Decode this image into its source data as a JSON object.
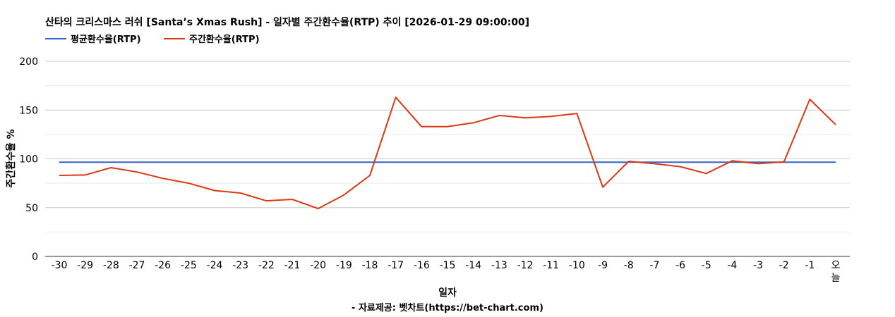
{
  "chart_data": {
    "type": "line",
    "title": "산타의 크리스마스 러쉬 [Santa’s Xmas Rush] - 일자별 주간환수율(RTP) 추이 [2026-01-29 09:00:00]",
    "xlabel": "일자",
    "ylabel": "주간환수율 %",
    "source": "- 자료제공: 벳차트(https://bet-chart.com)",
    "legend_position": "top-left",
    "grid": true,
    "ylim": [
      0,
      200
    ],
    "yticks": [
      "0",
      "50",
      "100",
      "150",
      "200"
    ],
    "categories": [
      "-30",
      "-29",
      "-28",
      "-27",
      "-26",
      "-25",
      "-24",
      "-23",
      "-22",
      "-21",
      "-20",
      "-19",
      "-18",
      "-17",
      "-16",
      "-15",
      "-14",
      "-13",
      "-12",
      "-11",
      "-10",
      "-9",
      "-8",
      "-7",
      "-6",
      "-5",
      "-4",
      "-3",
      "-2",
      "-1",
      "오늘"
    ],
    "series": [
      {
        "name": "평균환수율(RTP)",
        "color": "#3366cc",
        "values": [
          96.5,
          96.5,
          96.5,
          96.5,
          96.5,
          96.5,
          96.5,
          96.5,
          96.5,
          96.5,
          96.5,
          96.5,
          96.5,
          96.5,
          96.5,
          96.5,
          96.5,
          96.5,
          96.5,
          96.5,
          96.5,
          96.5,
          96.5,
          96.5,
          96.5,
          96.5,
          96.5,
          96.5,
          96.5,
          96.5,
          96.5
        ]
      },
      {
        "name": "주간환수율(RTP)",
        "color": "#dc3912",
        "values": [
          83,
          83.5,
          91,
          86.5,
          80,
          75,
          67.5,
          65,
          57,
          58.5,
          49,
          63,
          83,
          163,
          133,
          133,
          137,
          144.5,
          142,
          143.5,
          146.5,
          71,
          97.5,
          95,
          92,
          85,
          98,
          95,
          97,
          161,
          135
        ]
      }
    ]
  }
}
